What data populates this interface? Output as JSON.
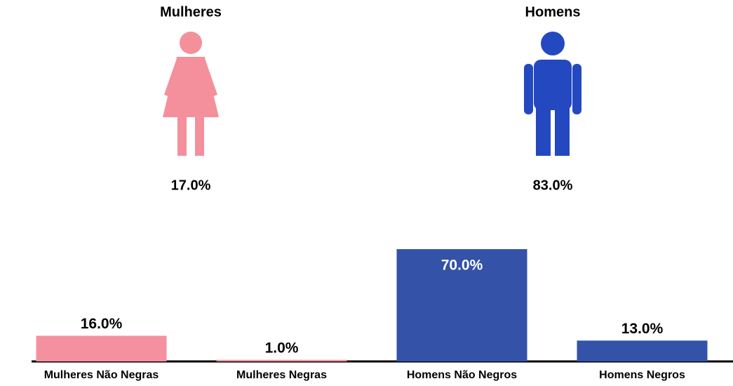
{
  "chart_data": [
    {
      "type": "pictogram",
      "categories": [
        "Mulheres",
        "Homens"
      ],
      "values": [
        17.0,
        83.0
      ],
      "value_labels": [
        "17.0%",
        "83.0%"
      ],
      "colors": [
        "#f4909b",
        "#2448c0"
      ]
    },
    {
      "type": "bar",
      "categories": [
        "Mulheres Não Negras",
        "Mulheres Negras",
        "Homens Não Negros",
        "Homens Negros"
      ],
      "values": [
        16.0,
        1.0,
        70.0,
        13.0
      ],
      "value_labels": [
        "16.0%",
        "1.0%",
        "70.0%",
        "13.0%"
      ],
      "colors": [
        "#f4909f",
        "#f4909f",
        "#3352a8",
        "#3352a8"
      ]
    }
  ]
}
